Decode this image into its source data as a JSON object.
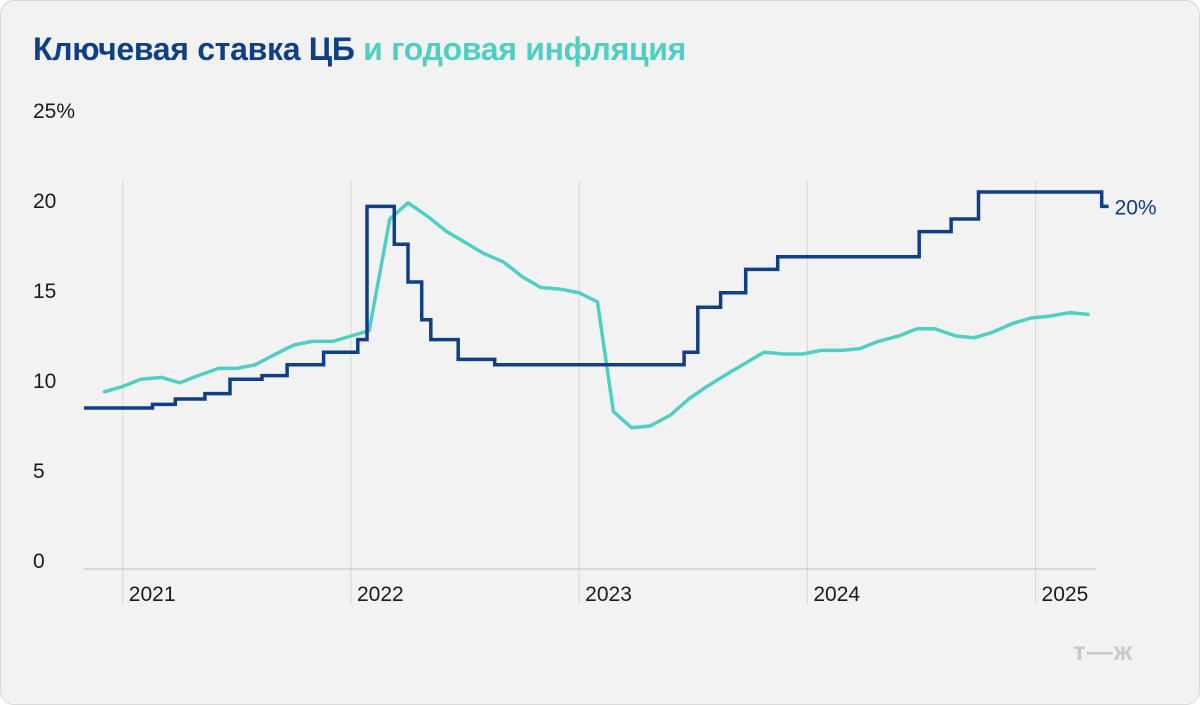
{
  "title": {
    "rate_part": "Ключевая ставка ЦБ",
    "inflation_part": "и годовая инфляция"
  },
  "logo": "т—ж",
  "colors": {
    "rate": "#0f3f86",
    "inflation": "#4fcfc3",
    "grid": "#d6d6d6",
    "axis": "#bdbdbd",
    "background": "#f2f2f2"
  },
  "chart_data": {
    "type": "line",
    "title": "Ключевая ставка ЦБ и годовая инфляция",
    "x_unit": "year",
    "xlim": [
      2020.83,
      2025.3
    ],
    "ylim": [
      0,
      25
    ],
    "yticks": [
      {
        "value": 25,
        "label": "25%"
      },
      {
        "value": 20,
        "label": "20"
      },
      {
        "value": 15,
        "label": "15"
      },
      {
        "value": 10,
        "label": "10"
      },
      {
        "value": 5,
        "label": "5"
      },
      {
        "value": 0,
        "label": "0"
      }
    ],
    "xticks": [
      {
        "value": 2021,
        "label": "2021"
      },
      {
        "value": 2022,
        "label": "2022"
      },
      {
        "value": 2023,
        "label": "2023"
      },
      {
        "value": 2024,
        "label": "2024"
      },
      {
        "value": 2025,
        "label": "2025"
      }
    ],
    "grid": "vertical lines at year starts",
    "end_label": "20%",
    "series": [
      {
        "name": "Ключевая ставка ЦБ",
        "step": true,
        "points": [
          [
            2020.83,
            8.5
          ],
          [
            2021.13,
            8.7
          ],
          [
            2021.23,
            9.0
          ],
          [
            2021.36,
            9.3
          ],
          [
            2021.47,
            10.1
          ],
          [
            2021.61,
            10.3
          ],
          [
            2021.72,
            10.9
          ],
          [
            2021.88,
            11.6
          ],
          [
            2022.03,
            12.3
          ],
          [
            2022.07,
            19.7
          ],
          [
            2022.19,
            17.6
          ],
          [
            2022.25,
            15.5
          ],
          [
            2022.31,
            13.4
          ],
          [
            2022.35,
            12.3
          ],
          [
            2022.47,
            11.2
          ],
          [
            2022.63,
            10.9
          ],
          [
            2023.46,
            11.6
          ],
          [
            2023.52,
            14.1
          ],
          [
            2023.62,
            14.9
          ],
          [
            2023.73,
            16.2
          ],
          [
            2023.87,
            16.9
          ],
          [
            2024.49,
            18.3
          ],
          [
            2024.63,
            19.0
          ],
          [
            2024.75,
            20.5
          ],
          [
            2025.29,
            19.7
          ],
          [
            2025.32,
            19.7
          ]
        ]
      },
      {
        "name": "Годовая инфляция",
        "step": false,
        "points": [
          [
            2020.92,
            9.4
          ],
          [
            2021.0,
            9.7
          ],
          [
            2021.08,
            10.1
          ],
          [
            2021.17,
            10.2
          ],
          [
            2021.25,
            9.9
          ],
          [
            2021.33,
            10.3
          ],
          [
            2021.42,
            10.7
          ],
          [
            2021.5,
            10.7
          ],
          [
            2021.58,
            10.9
          ],
          [
            2021.67,
            11.5
          ],
          [
            2021.75,
            12.0
          ],
          [
            2021.83,
            12.2
          ],
          [
            2021.92,
            12.2
          ],
          [
            2022.0,
            12.5
          ],
          [
            2022.08,
            12.8
          ],
          [
            2022.17,
            19.0
          ],
          [
            2022.25,
            19.9
          ],
          [
            2022.33,
            19.2
          ],
          [
            2022.42,
            18.3
          ],
          [
            2022.5,
            17.7
          ],
          [
            2022.58,
            17.1
          ],
          [
            2022.67,
            16.6
          ],
          [
            2022.75,
            15.8
          ],
          [
            2022.83,
            15.2
          ],
          [
            2022.92,
            15.1
          ],
          [
            2023.0,
            14.9
          ],
          [
            2023.08,
            14.4
          ],
          [
            2023.15,
            8.3
          ],
          [
            2023.23,
            7.4
          ],
          [
            2023.31,
            7.5
          ],
          [
            2023.4,
            8.1
          ],
          [
            2023.48,
            9.0
          ],
          [
            2023.56,
            9.7
          ],
          [
            2023.65,
            10.4
          ],
          [
            2023.73,
            11.0
          ],
          [
            2023.81,
            11.6
          ],
          [
            2023.9,
            11.5
          ],
          [
            2023.98,
            11.5
          ],
          [
            2024.06,
            11.7
          ],
          [
            2024.15,
            11.7
          ],
          [
            2024.23,
            11.8
          ],
          [
            2024.31,
            12.2
          ],
          [
            2024.4,
            12.5
          ],
          [
            2024.48,
            12.9
          ],
          [
            2024.56,
            12.9
          ],
          [
            2024.65,
            12.5
          ],
          [
            2024.73,
            12.4
          ],
          [
            2024.81,
            12.7
          ],
          [
            2024.9,
            13.2
          ],
          [
            2024.98,
            13.5
          ],
          [
            2025.06,
            13.6
          ],
          [
            2025.15,
            13.8
          ],
          [
            2025.23,
            13.7
          ]
        ]
      }
    ]
  }
}
